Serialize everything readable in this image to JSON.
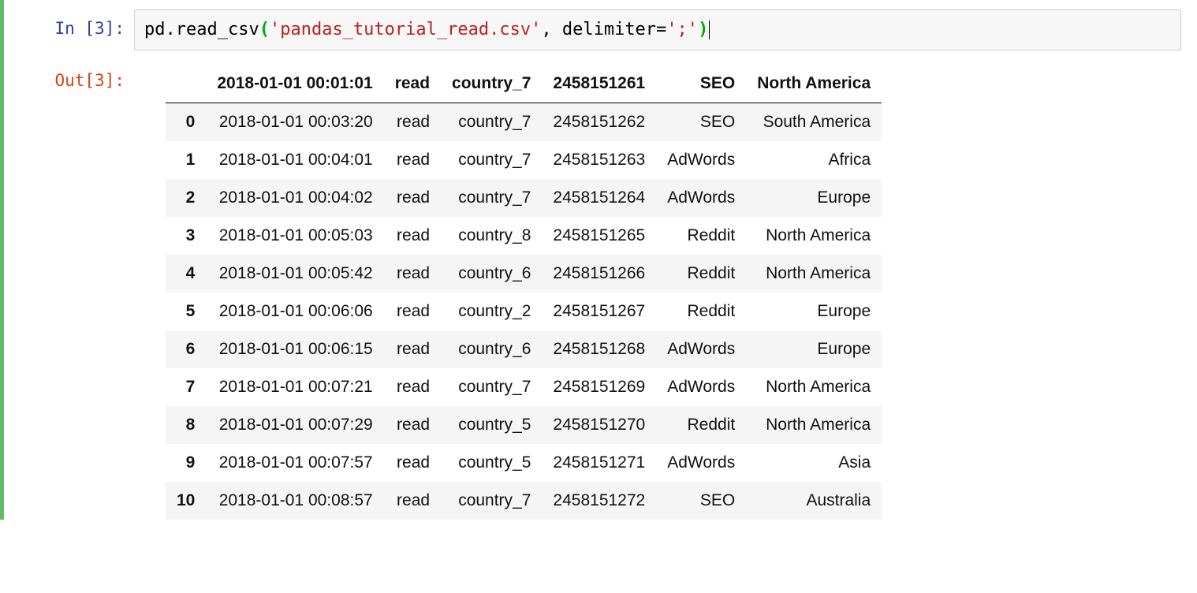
{
  "cell": {
    "inPrompt": "In [3]:",
    "outPrompt": "Out[3]:",
    "code": {
      "prefix": "pd",
      "dot": ".",
      "func": "read_csv",
      "open": "(",
      "str": "'pandas_tutorial_read.csv'",
      "comma": ", ",
      "kw": "delimiter",
      "eq": "=",
      "str2": "';'",
      "close": ")"
    }
  },
  "table": {
    "headers": [
      "2018-01-01 00:01:01",
      "read",
      "country_7",
      "2458151261",
      "SEO",
      "North America"
    ],
    "rows": [
      {
        "idx": "0",
        "c": [
          "2018-01-01 00:03:20",
          "read",
          "country_7",
          "2458151262",
          "SEO",
          "South America"
        ]
      },
      {
        "idx": "1",
        "c": [
          "2018-01-01 00:04:01",
          "read",
          "country_7",
          "2458151263",
          "AdWords",
          "Africa"
        ]
      },
      {
        "idx": "2",
        "c": [
          "2018-01-01 00:04:02",
          "read",
          "country_7",
          "2458151264",
          "AdWords",
          "Europe"
        ]
      },
      {
        "idx": "3",
        "c": [
          "2018-01-01 00:05:03",
          "read",
          "country_8",
          "2458151265",
          "Reddit",
          "North America"
        ]
      },
      {
        "idx": "4",
        "c": [
          "2018-01-01 00:05:42",
          "read",
          "country_6",
          "2458151266",
          "Reddit",
          "North America"
        ]
      },
      {
        "idx": "5",
        "c": [
          "2018-01-01 00:06:06",
          "read",
          "country_2",
          "2458151267",
          "Reddit",
          "Europe"
        ]
      },
      {
        "idx": "6",
        "c": [
          "2018-01-01 00:06:15",
          "read",
          "country_6",
          "2458151268",
          "AdWords",
          "Europe"
        ]
      },
      {
        "idx": "7",
        "c": [
          "2018-01-01 00:07:21",
          "read",
          "country_7",
          "2458151269",
          "AdWords",
          "North America"
        ]
      },
      {
        "idx": "8",
        "c": [
          "2018-01-01 00:07:29",
          "read",
          "country_5",
          "2458151270",
          "Reddit",
          "North America"
        ]
      },
      {
        "idx": "9",
        "c": [
          "2018-01-01 00:07:57",
          "read",
          "country_5",
          "2458151271",
          "AdWords",
          "Asia"
        ]
      },
      {
        "idx": "10",
        "c": [
          "2018-01-01 00:08:57",
          "read",
          "country_7",
          "2458151272",
          "SEO",
          "Australia"
        ]
      }
    ],
    "styling": {
      "header_bg": "#ffffff",
      "header_border": "#000000",
      "row_odd_bg": "#f5f5f5",
      "row_even_bg": "#ffffff",
      "text_color": "#111111",
      "font_size_pt": 16,
      "cell_align": "right"
    }
  },
  "colors": {
    "run_indicator": "#66BB6A",
    "in_prompt": "#303F9F",
    "out_prompt": "#D84315",
    "string": "#BA2121",
    "paren": "#00aa00",
    "code_bg": "#f7f7f7",
    "code_border": "#cfcfcf"
  }
}
